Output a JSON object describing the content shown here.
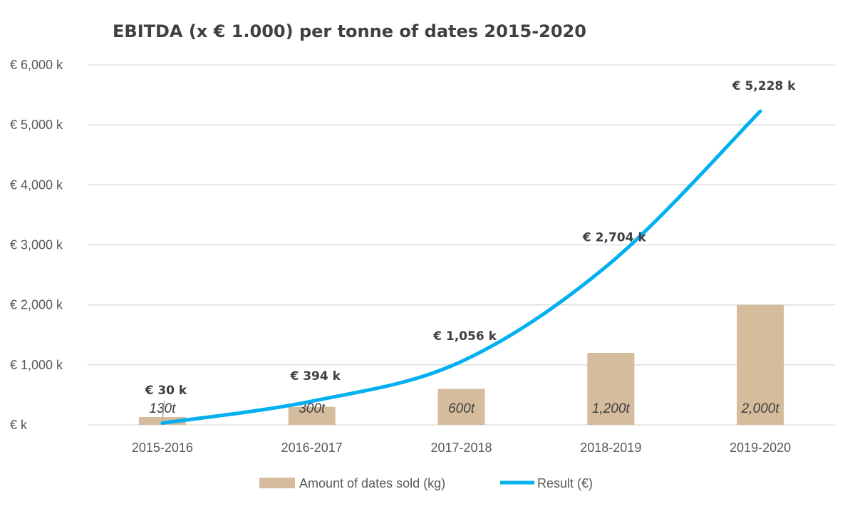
{
  "chart_data": {
    "type": "bar+line",
    "title": "EBITDA (x € 1.000) per tonne of dates 2015-2020",
    "categories": [
      "2015-2016",
      "2016-2017",
      "2017-2018",
      "2018-2019",
      "2019-2020"
    ],
    "ylim": [
      0,
      6000
    ],
    "y_ticks": [
      0,
      1000,
      2000,
      3000,
      4000,
      5000,
      6000
    ],
    "y_tick_labels": [
      "€  k",
      "€ 1,000 k",
      "€ 2,000 k",
      "€ 3,000 k",
      "€ 4,000 k",
      "€ 5,000 k",
      "€ 6,000 k"
    ],
    "grid": true,
    "legend_position": "bottom",
    "series": [
      {
        "name": "Amount of dates sold (kg)",
        "type": "bar",
        "color": "#d4bc9c",
        "values": [
          130,
          300,
          600,
          1200,
          2000
        ],
        "labels": [
          "130t",
          "300t",
          "600t",
          "1,200t",
          "2,000t"
        ]
      },
      {
        "name": "Result (€)",
        "type": "line",
        "color": "#00b0f0",
        "values": [
          30,
          394,
          1056,
          2704,
          5228
        ],
        "labels": [
          "€ 30 k",
          "€ 394 k",
          "€ 1,056 k",
          "€ 2,704 k",
          "€ 5,228 k"
        ]
      }
    ]
  }
}
